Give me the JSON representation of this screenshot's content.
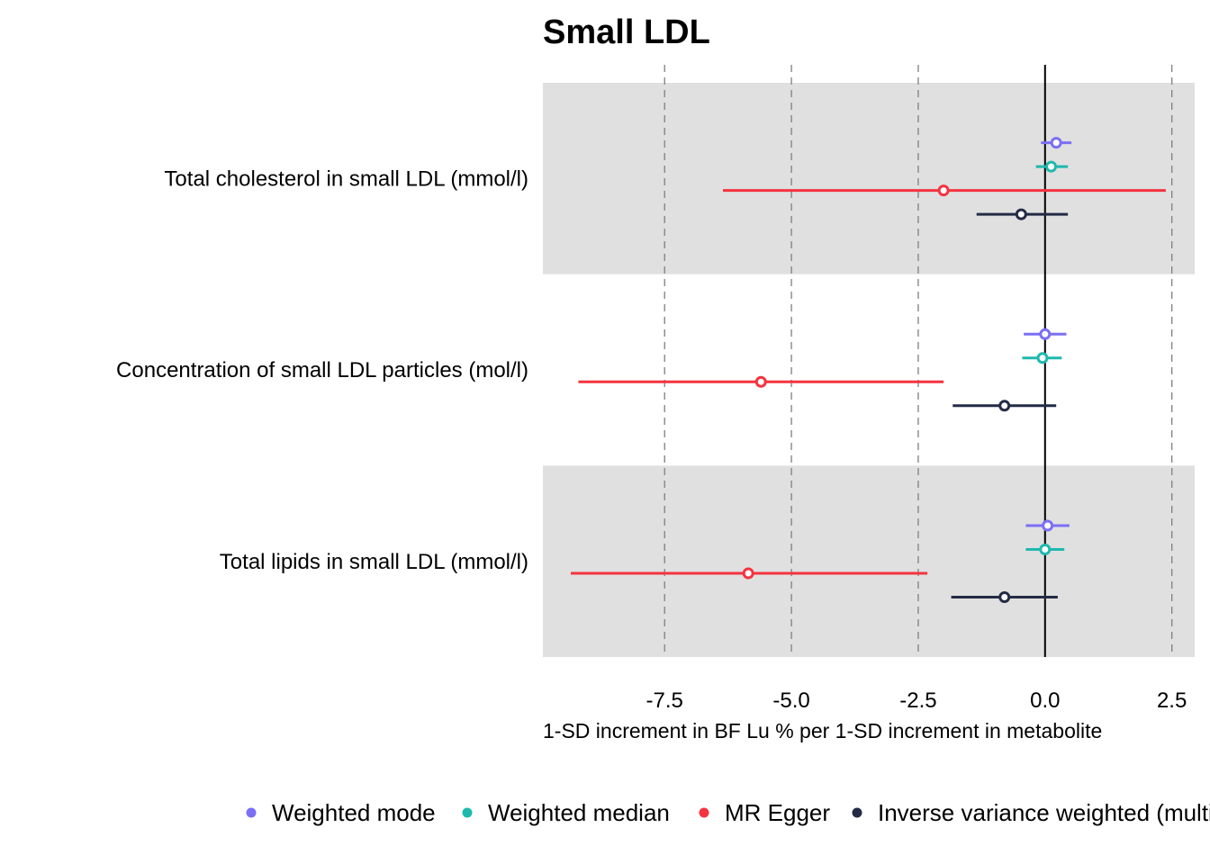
{
  "chart_data": {
    "type": "forest",
    "title": "Small LDL",
    "xlabel": "1-SD increment in BF Lu % per 1-SD increment in metabolite",
    "xlim": [
      -9.9,
      2.95
    ],
    "xticks": [
      -7.5,
      -5.0,
      -2.5,
      0.0,
      2.5
    ],
    "xtick_labels": [
      "-7.5",
      "-5.0",
      "-2.5",
      "0.0",
      "2.5"
    ],
    "dashed_gridlines": [
      -7.5,
      -5.0,
      -2.5,
      2.5
    ],
    "reference_line": 0.0,
    "banded_rows": true,
    "legend_position": "bottom",
    "categories": [
      "Total cholesterol in small LDL (mmol/l)",
      "Concentration of small LDL particles (mol/l)",
      "Total lipids in small LDL (mmol/l)"
    ],
    "series": [
      {
        "name": "Weighted mode",
        "color": "#7b6ff5",
        "estimates": [
          0.22,
          0.0,
          0.05
        ],
        "ci_lower": [
          -0.08,
          -0.42,
          -0.38
        ],
        "ci_upper": [
          0.52,
          0.42,
          0.48
        ]
      },
      {
        "name": "Weighted median",
        "color": "#1fb8ae",
        "estimates": [
          0.12,
          -0.05,
          0.0
        ],
        "ci_lower": [
          -0.18,
          -0.45,
          -0.38
        ],
        "ci_upper": [
          0.45,
          0.33,
          0.38
        ]
      },
      {
        "name": "MR Egger",
        "color": "#f5333f",
        "estimates": [
          -2.0,
          -5.6,
          -5.85
        ],
        "ci_lower": [
          -6.35,
          -9.2,
          -9.35
        ],
        "ci_upper": [
          2.38,
          -2.0,
          -2.32
        ]
      },
      {
        "name": "Inverse variance weighted (multiplicative random effects)",
        "color": "#232b45",
        "estimates": [
          -0.47,
          -0.8,
          -0.8
        ],
        "ci_lower": [
          -1.35,
          -1.82,
          -1.85
        ],
        "ci_upper": [
          0.45,
          0.22,
          0.25
        ]
      }
    ]
  }
}
